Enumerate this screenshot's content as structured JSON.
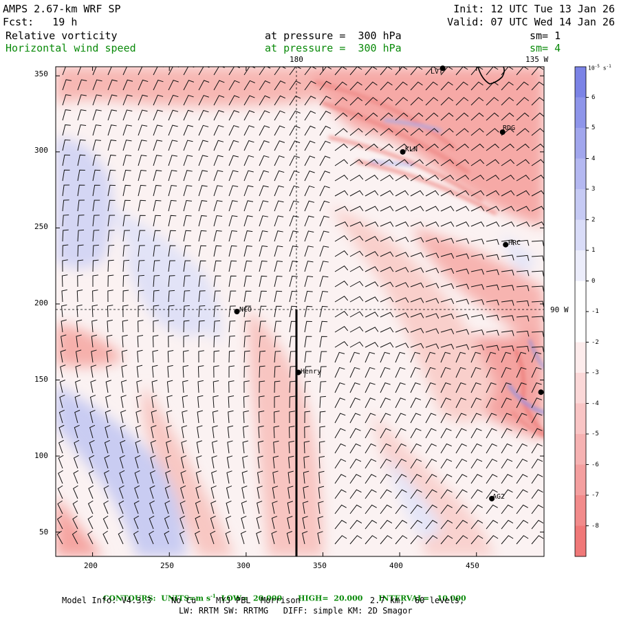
{
  "header": {
    "title": "AMPS 2.67-km WRF SP",
    "fcst": "Fcst:   19 h",
    "init": "Init: 12 UTC Tue 13 Jan 26",
    "valid": "Valid: 07 UTC Wed 14 Jan 26",
    "field1_name": "Relative vorticity",
    "field1_level": "at pressure =  300 hPa",
    "field1_sm": "sm= 1",
    "field2_name": "Horizontal wind speed",
    "field2_level": "at pressure =  300 hPa",
    "field2_sm": "sm= 4"
  },
  "map": {
    "meridian_labels": [
      "180",
      "135 W",
      "90 W"
    ],
    "x_ticks": [
      "200",
      "250",
      "300",
      "350",
      "400",
      "450"
    ],
    "y_ticks": [
      "50",
      "100",
      "150",
      "200",
      "250",
      "300",
      "350"
    ],
    "x_range": [
      176,
      494
    ],
    "y_range": [
      34,
      356
    ],
    "stations": [
      {
        "name": "LVT",
        "x": 428,
        "y": 355
      },
      {
        "name": "RDG",
        "x": 467,
        "y": 313
      },
      {
        "name": "KLN",
        "x": 402,
        "y": 300
      },
      {
        "name": "HRC",
        "x": 469,
        "y": 239
      },
      {
        "name": "NCO",
        "x": 294,
        "y": 195
      },
      {
        "name": "Henry",
        "x": 334,
        "y": 155
      },
      {
        "name": "AG2",
        "x": 460,
        "y": 72
      },
      {
        "name": "",
        "x": 492,
        "y": 142
      }
    ]
  },
  "colorbar": {
    "unit": "10^-5 s^-1",
    "labels": [
      "6",
      "5",
      "4",
      "3",
      "2",
      "1",
      "0",
      "-1",
      "-2",
      "-3",
      "-4",
      "-5",
      "-6",
      "-7",
      "-8"
    ],
    "colors": {
      "positive": "#7b83e6",
      "negative": "#f07878",
      "neutral": "#ffffff"
    }
  },
  "footer": {
    "contours_prefix": "CONTOURS:  UNITS=m s",
    "contours_sup": "-1",
    "contours_rest": "  LOW=  20.000      HIGH=  20.000      INTERVAL=   10.000",
    "model_line": "Model Info: V4.3.3    No Cu    MYJ PBL  Morrison              2.7 km,  60 levels,",
    "physics_line": "LW: RRTM SW: RRTMG   DIFF: simple KM: 2D Smagor"
  }
}
